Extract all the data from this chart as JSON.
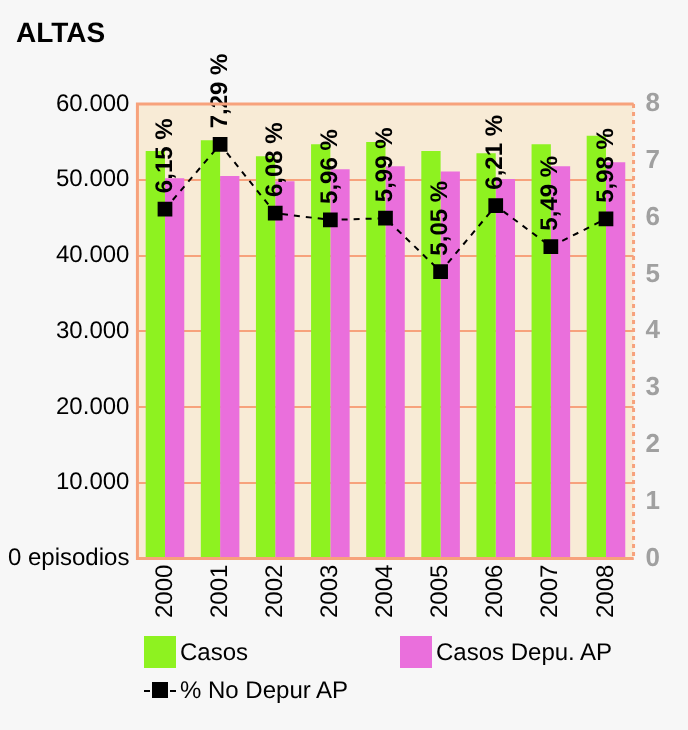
{
  "chart_data": {
    "type": "bar",
    "title": "ALTAS",
    "categories": [
      "2000",
      "2001",
      "2002",
      "2003",
      "2004",
      "2005",
      "2006",
      "2007",
      "2008"
    ],
    "series": [
      {
        "name": "Casos",
        "color": "#8ef220",
        "values": [
          53800,
          55200,
          53100,
          54700,
          55000,
          53800,
          53500,
          54700,
          55800
        ]
      },
      {
        "name": "Casos Depu. AP",
        "color": "#ea6fdc",
        "values": [
          50200,
          50500,
          49800,
          51400,
          51800,
          51100,
          50100,
          51800,
          52300
        ]
      },
      {
        "name": "% No Depur AP",
        "type": "line",
        "axis": "y2",
        "color": "#000000",
        "marker": "square",
        "line_style": "dashed",
        "values": [
          6.15,
          7.29,
          6.08,
          5.96,
          5.99,
          5.05,
          6.21,
          5.49,
          5.98
        ],
        "value_labels": [
          "6,15 %",
          "7,29 %",
          "6,08 %",
          "5,96 %",
          "5,99 %",
          "5,05 %",
          "6,21 %",
          "5,49 %",
          "5,98 %"
        ]
      }
    ],
    "ylim": [
      0,
      60000
    ],
    "yticks": [
      {
        "value": 0,
        "label": "0 episodios"
      },
      {
        "value": 10000,
        "label": "10.000"
      },
      {
        "value": 20000,
        "label": "20.000"
      },
      {
        "value": 30000,
        "label": "30.000"
      },
      {
        "value": 40000,
        "label": "40.000"
      },
      {
        "value": 50000,
        "label": "50.000"
      },
      {
        "value": 60000,
        "label": "60.000"
      }
    ],
    "y2lim": [
      0,
      8
    ],
    "y2ticks": [
      0,
      1,
      2,
      3,
      4,
      5,
      6,
      7,
      8
    ],
    "grid": "y",
    "legend": "bottom"
  }
}
